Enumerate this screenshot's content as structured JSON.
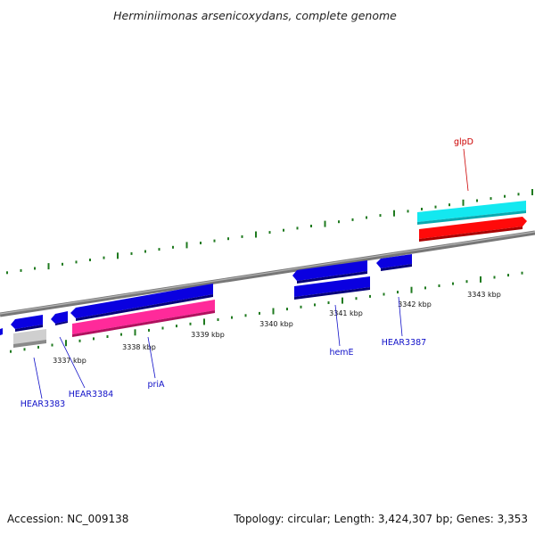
{
  "title": "Herminiimonas arsenicoxydans, complete genome",
  "footer": {
    "accession": "Accession: NC_009138",
    "summary": "Topology: circular; Length: 3,424,307 bp; Genes: 3,353"
  },
  "colors": {
    "backbone": "#8c8c8c",
    "tick": "#1f7a1f",
    "forward_cds": "#0a00e0",
    "reverse_cds": "#0a00e0",
    "gene_pink": "#ff2a9a",
    "gene_cyan": "#13e8f0",
    "gene_red": "#ff0a0a",
    "gene_gray": "#c8c8c8",
    "label_blue": "#1010c8",
    "label_red": "#cc0000"
  },
  "tick_labels": [
    "3337 kbp",
    "3338 kbp",
    "3339 kbp",
    "3340 kbp",
    "3341 kbp",
    "3342 kbp",
    "3343 kbp"
  ],
  "genes": [
    {
      "id": "glpD",
      "label": "glpD",
      "label_color": "red"
    },
    {
      "id": "HEAR3383",
      "label": "HEAR3383",
      "label_color": "blue"
    },
    {
      "id": "HEAR3384",
      "label": "HEAR3384",
      "label_color": "blue"
    },
    {
      "id": "priA",
      "label": "priA",
      "label_color": "blue"
    },
    {
      "id": "hemE",
      "label": "hemE",
      "label_color": "blue"
    },
    {
      "id": "HEAR3387",
      "label": "HEAR3387",
      "label_color": "blue"
    }
  ]
}
